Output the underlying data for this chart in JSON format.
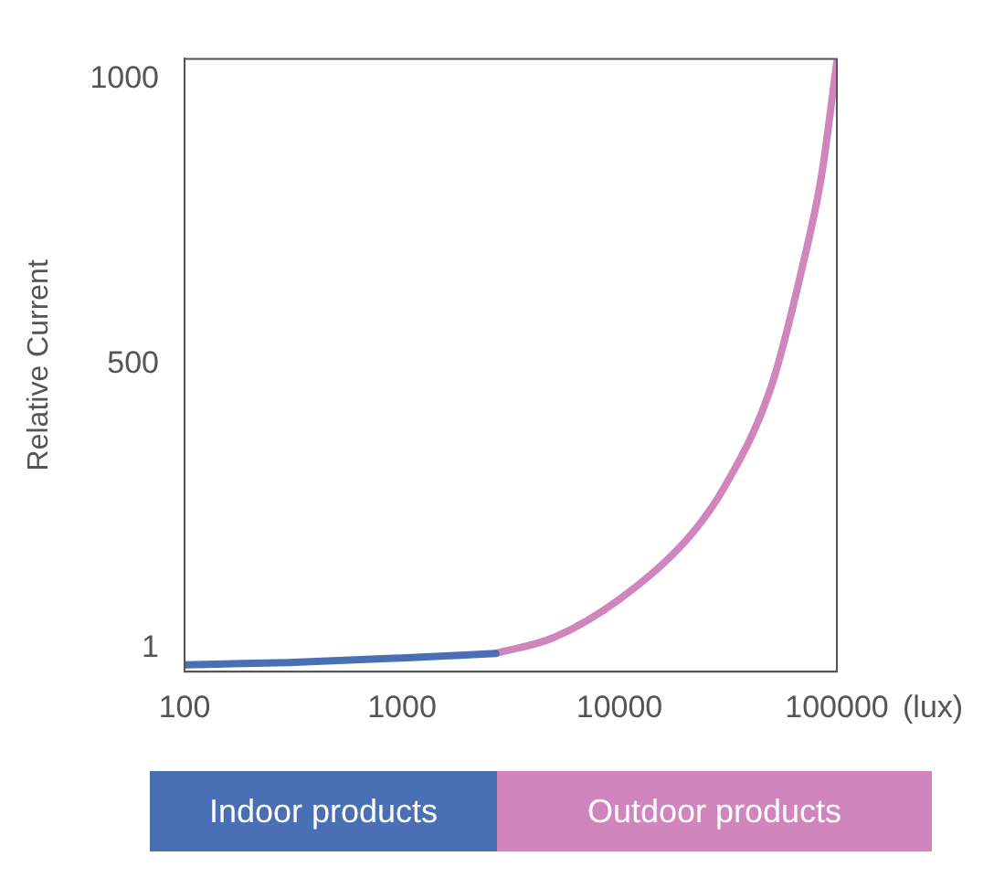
{
  "chart_data": {
    "type": "line",
    "ylabel": "Relative Current",
    "xlabel": "(lux)",
    "log": "x",
    "xlim": [
      100,
      100000
    ],
    "xticks": [
      100,
      1000,
      10000,
      100000
    ],
    "ylim": [
      -40,
      1035
    ],
    "yticks": [
      1,
      500,
      1000
    ],
    "grid": false,
    "legend": "bottom",
    "marker": "none",
    "line_style": "solid",
    "series": [
      {
        "name": "Indoor products",
        "color": "#4a6fb5",
        "x": [
          100,
          300,
          1000,
          2700
        ],
        "values": [
          -28,
          -24,
          -16,
          -8
        ]
      },
      {
        "name": "Outdoor products",
        "color": "#d086bc",
        "x": [
          2700,
          5000,
          10000,
          20000,
          30000,
          50000,
          70000,
          85000,
          100000
        ],
        "values": [
          -8,
          20,
          87,
          188,
          280,
          461,
          676,
          830,
          1030
        ]
      }
    ]
  }
}
